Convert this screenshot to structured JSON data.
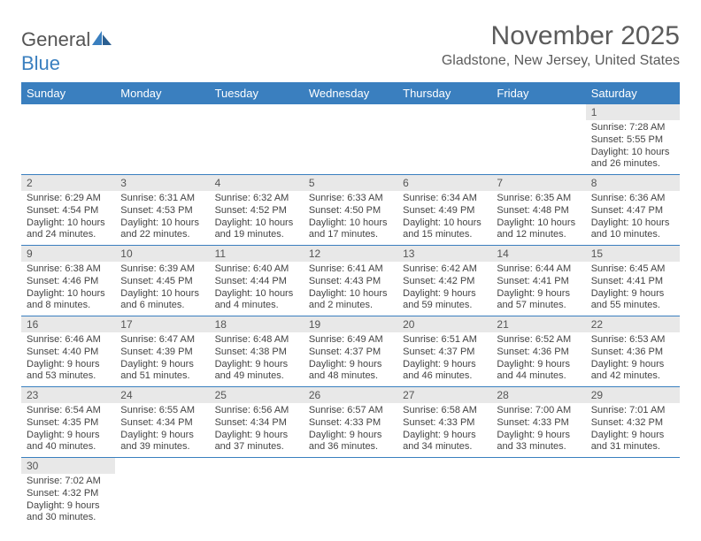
{
  "colors": {
    "header_bg": "#3a7fbf",
    "header_text": "#ffffff",
    "daynum_bg": "#e8e8e8",
    "text": "#555555",
    "border": "#3a7fbf"
  },
  "logo": {
    "part1": "General",
    "part2": "Blue"
  },
  "title": "November 2025",
  "location": "Gladstone, New Jersey, United States",
  "day_headers": [
    "Sunday",
    "Monday",
    "Tuesday",
    "Wednesday",
    "Thursday",
    "Friday",
    "Saturday"
  ],
  "weeks": [
    [
      null,
      null,
      null,
      null,
      null,
      null,
      {
        "n": "1",
        "sr": "Sunrise: 7:28 AM",
        "ss": "Sunset: 5:55 PM",
        "dl1": "Daylight: 10 hours",
        "dl2": "and 26 minutes."
      }
    ],
    [
      {
        "n": "2",
        "sr": "Sunrise: 6:29 AM",
        "ss": "Sunset: 4:54 PM",
        "dl1": "Daylight: 10 hours",
        "dl2": "and 24 minutes."
      },
      {
        "n": "3",
        "sr": "Sunrise: 6:31 AM",
        "ss": "Sunset: 4:53 PM",
        "dl1": "Daylight: 10 hours",
        "dl2": "and 22 minutes."
      },
      {
        "n": "4",
        "sr": "Sunrise: 6:32 AM",
        "ss": "Sunset: 4:52 PM",
        "dl1": "Daylight: 10 hours",
        "dl2": "and 19 minutes."
      },
      {
        "n": "5",
        "sr": "Sunrise: 6:33 AM",
        "ss": "Sunset: 4:50 PM",
        "dl1": "Daylight: 10 hours",
        "dl2": "and 17 minutes."
      },
      {
        "n": "6",
        "sr": "Sunrise: 6:34 AM",
        "ss": "Sunset: 4:49 PM",
        "dl1": "Daylight: 10 hours",
        "dl2": "and 15 minutes."
      },
      {
        "n": "7",
        "sr": "Sunrise: 6:35 AM",
        "ss": "Sunset: 4:48 PM",
        "dl1": "Daylight: 10 hours",
        "dl2": "and 12 minutes."
      },
      {
        "n": "8",
        "sr": "Sunrise: 6:36 AM",
        "ss": "Sunset: 4:47 PM",
        "dl1": "Daylight: 10 hours",
        "dl2": "and 10 minutes."
      }
    ],
    [
      {
        "n": "9",
        "sr": "Sunrise: 6:38 AM",
        "ss": "Sunset: 4:46 PM",
        "dl1": "Daylight: 10 hours",
        "dl2": "and 8 minutes."
      },
      {
        "n": "10",
        "sr": "Sunrise: 6:39 AM",
        "ss": "Sunset: 4:45 PM",
        "dl1": "Daylight: 10 hours",
        "dl2": "and 6 minutes."
      },
      {
        "n": "11",
        "sr": "Sunrise: 6:40 AM",
        "ss": "Sunset: 4:44 PM",
        "dl1": "Daylight: 10 hours",
        "dl2": "and 4 minutes."
      },
      {
        "n": "12",
        "sr": "Sunrise: 6:41 AM",
        "ss": "Sunset: 4:43 PM",
        "dl1": "Daylight: 10 hours",
        "dl2": "and 2 minutes."
      },
      {
        "n": "13",
        "sr": "Sunrise: 6:42 AM",
        "ss": "Sunset: 4:42 PM",
        "dl1": "Daylight: 9 hours",
        "dl2": "and 59 minutes."
      },
      {
        "n": "14",
        "sr": "Sunrise: 6:44 AM",
        "ss": "Sunset: 4:41 PM",
        "dl1": "Daylight: 9 hours",
        "dl2": "and 57 minutes."
      },
      {
        "n": "15",
        "sr": "Sunrise: 6:45 AM",
        "ss": "Sunset: 4:41 PM",
        "dl1": "Daylight: 9 hours",
        "dl2": "and 55 minutes."
      }
    ],
    [
      {
        "n": "16",
        "sr": "Sunrise: 6:46 AM",
        "ss": "Sunset: 4:40 PM",
        "dl1": "Daylight: 9 hours",
        "dl2": "and 53 minutes."
      },
      {
        "n": "17",
        "sr": "Sunrise: 6:47 AM",
        "ss": "Sunset: 4:39 PM",
        "dl1": "Daylight: 9 hours",
        "dl2": "and 51 minutes."
      },
      {
        "n": "18",
        "sr": "Sunrise: 6:48 AM",
        "ss": "Sunset: 4:38 PM",
        "dl1": "Daylight: 9 hours",
        "dl2": "and 49 minutes."
      },
      {
        "n": "19",
        "sr": "Sunrise: 6:49 AM",
        "ss": "Sunset: 4:37 PM",
        "dl1": "Daylight: 9 hours",
        "dl2": "and 48 minutes."
      },
      {
        "n": "20",
        "sr": "Sunrise: 6:51 AM",
        "ss": "Sunset: 4:37 PM",
        "dl1": "Daylight: 9 hours",
        "dl2": "and 46 minutes."
      },
      {
        "n": "21",
        "sr": "Sunrise: 6:52 AM",
        "ss": "Sunset: 4:36 PM",
        "dl1": "Daylight: 9 hours",
        "dl2": "and 44 minutes."
      },
      {
        "n": "22",
        "sr": "Sunrise: 6:53 AM",
        "ss": "Sunset: 4:36 PM",
        "dl1": "Daylight: 9 hours",
        "dl2": "and 42 minutes."
      }
    ],
    [
      {
        "n": "23",
        "sr": "Sunrise: 6:54 AM",
        "ss": "Sunset: 4:35 PM",
        "dl1": "Daylight: 9 hours",
        "dl2": "and 40 minutes."
      },
      {
        "n": "24",
        "sr": "Sunrise: 6:55 AM",
        "ss": "Sunset: 4:34 PM",
        "dl1": "Daylight: 9 hours",
        "dl2": "and 39 minutes."
      },
      {
        "n": "25",
        "sr": "Sunrise: 6:56 AM",
        "ss": "Sunset: 4:34 PM",
        "dl1": "Daylight: 9 hours",
        "dl2": "and 37 minutes."
      },
      {
        "n": "26",
        "sr": "Sunrise: 6:57 AM",
        "ss": "Sunset: 4:33 PM",
        "dl1": "Daylight: 9 hours",
        "dl2": "and 36 minutes."
      },
      {
        "n": "27",
        "sr": "Sunrise: 6:58 AM",
        "ss": "Sunset: 4:33 PM",
        "dl1": "Daylight: 9 hours",
        "dl2": "and 34 minutes."
      },
      {
        "n": "28",
        "sr": "Sunrise: 7:00 AM",
        "ss": "Sunset: 4:33 PM",
        "dl1": "Daylight: 9 hours",
        "dl2": "and 33 minutes."
      },
      {
        "n": "29",
        "sr": "Sunrise: 7:01 AM",
        "ss": "Sunset: 4:32 PM",
        "dl1": "Daylight: 9 hours",
        "dl2": "and 31 minutes."
      }
    ],
    [
      {
        "n": "30",
        "sr": "Sunrise: 7:02 AM",
        "ss": "Sunset: 4:32 PM",
        "dl1": "Daylight: 9 hours",
        "dl2": "and 30 minutes."
      },
      null,
      null,
      null,
      null,
      null,
      null
    ]
  ]
}
